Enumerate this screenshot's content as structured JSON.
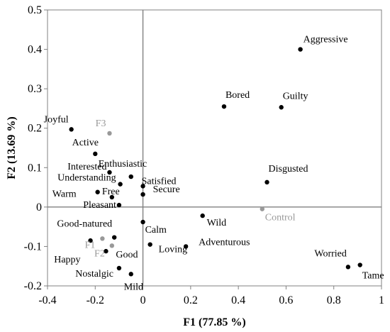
{
  "chart_data": {
    "type": "scatter",
    "title": "",
    "xlabel": "F1 (77.85 %)",
    "ylabel": "F2 (13.69 %)",
    "xlim": [
      -0.4,
      1.0
    ],
    "ylim": [
      -0.2,
      0.5
    ],
    "xticks": [
      -0.4,
      -0.2,
      0,
      0.2,
      0.4,
      0.6,
      0.8,
      1
    ],
    "yticks": [
      -0.2,
      -0.1,
      0,
      0.1,
      0.2,
      0.3,
      0.4,
      0.5
    ],
    "xtick_labels": [
      "-0.4",
      "-0.2",
      "0",
      "0.2",
      "0.4",
      "0.6",
      "0.8",
      "1"
    ],
    "ytick_labels": [
      "-0.2",
      "-0.1",
      "0",
      "0.1",
      "0.2",
      "0.3",
      "0.4",
      "0.5"
    ],
    "grid": false,
    "colors": {
      "term": "#000000",
      "product": "#999999"
    },
    "series": [
      {
        "points": [
          {
            "label": "Aggressive",
            "x": 0.66,
            "y": 0.4
          },
          {
            "label": "Bored",
            "x": 0.34,
            "y": 0.255
          },
          {
            "label": "Guilty",
            "x": 0.58,
            "y": 0.253
          },
          {
            "label": "Joyful",
            "x": -0.3,
            "y": 0.197
          },
          {
            "label": "Active",
            "x": -0.2,
            "y": 0.135
          },
          {
            "label": "Interested",
            "x": -0.14,
            "y": 0.088
          },
          {
            "label": "Enthusiastic",
            "x": -0.05,
            "y": 0.077
          },
          {
            "label": "Understanding",
            "x": -0.095,
            "y": 0.058
          },
          {
            "label": "Satisfied",
            "x": 0.0,
            "y": 0.053
          },
          {
            "label": "Disgusted",
            "x": 0.52,
            "y": 0.063
          },
          {
            "label": "Warm",
            "x": -0.19,
            "y": 0.038
          },
          {
            "label": "Free",
            "x": -0.13,
            "y": 0.025
          },
          {
            "label": "Secure",
            "x": 0.0,
            "y": 0.032
          },
          {
            "label": "Pleasant",
            "x": -0.1,
            "y": 0.005
          },
          {
            "label": "Wild",
            "x": 0.25,
            "y": -0.022
          },
          {
            "label": "Calm",
            "x": 0.0,
            "y": -0.038
          },
          {
            "label": "Good-natured",
            "x": -0.12,
            "y": -0.077
          },
          {
            "label": "Loving",
            "x": 0.03,
            "y": -0.095
          },
          {
            "label": "Adventurous",
            "x": 0.18,
            "y": -0.1
          },
          {
            "label": "Happy",
            "x": -0.22,
            "y": -0.085
          },
          {
            "label": "Good",
            "x": -0.155,
            "y": -0.112
          },
          {
            "label": "Nostalgic",
            "x": -0.1,
            "y": -0.155
          },
          {
            "label": "Mild",
            "x": -0.05,
            "y": -0.17
          },
          {
            "label": "Worried",
            "x": 0.86,
            "y": -0.152
          },
          {
            "label": "Tame",
            "x": 0.91,
            "y": -0.147
          }
        ]
      },
      {
        "points": [
          {
            "label": "F3",
            "x": -0.14,
            "y": 0.187
          },
          {
            "label": "Control",
            "x": 0.5,
            "y": -0.005
          },
          {
            "label": "F1",
            "x": -0.17,
            "y": -0.08
          },
          {
            "label": "F2",
            "x": -0.13,
            "y": -0.098
          }
        ]
      }
    ]
  }
}
